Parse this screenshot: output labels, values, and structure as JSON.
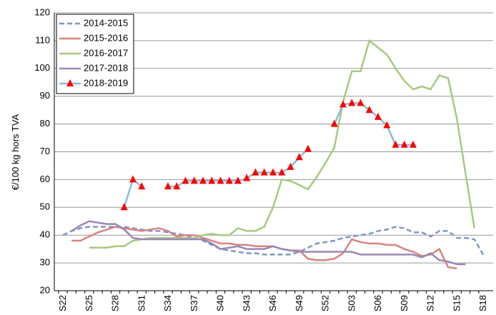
{
  "chart_data": {
    "type": "line",
    "y_label": "€/100 kg hors TVA",
    "categories": [
      "S22",
      null,
      null,
      "S25",
      null,
      null,
      "S28",
      null,
      null,
      "S31",
      null,
      null,
      "S34",
      null,
      null,
      "S37",
      null,
      null,
      "S40",
      null,
      null,
      "S43",
      null,
      null,
      "S46",
      null,
      null,
      "S49",
      null,
      null,
      "S52",
      null,
      null,
      "S03",
      null,
      null,
      "S06",
      null,
      null,
      "S09",
      null,
      null,
      "S12",
      null,
      null,
      "S15",
      null,
      null,
      "S18"
    ],
    "ylim": [
      20,
      120
    ],
    "yticks": [
      20,
      30,
      40,
      50,
      60,
      70,
      80,
      90,
      100,
      110,
      120
    ],
    "grid": true,
    "legend": "upper left",
    "series": [
      {
        "name": "2014-2015",
        "color": "#7f97c8",
        "dash": true,
        "values": [
          40,
          41.5,
          42.5,
          43,
          43,
          43,
          43,
          43,
          42.5,
          42,
          41.5,
          41.5,
          41,
          40.5,
          40,
          39,
          38,
          36.5,
          35,
          34.5,
          34,
          33.5,
          33.5,
          33,
          33,
          33,
          33,
          34,
          35.5,
          37,
          37.5,
          38,
          39,
          39.5,
          40,
          40.5,
          41.5,
          42,
          43,
          42.5,
          41,
          41,
          39.5,
          41.5,
          41.5,
          39,
          39,
          38.5,
          33
        ]
      },
      {
        "name": "2015-2016",
        "color": "#d9837f",
        "values": [
          null,
          38,
          38,
          39.5,
          41,
          42,
          43,
          42.5,
          42,
          41.5,
          42,
          42.5,
          41.5,
          39.5,
          40,
          40,
          39,
          38,
          37,
          37,
          36.5,
          36.5,
          36,
          36,
          36,
          35,
          34.5,
          34.5,
          31.5,
          31,
          31,
          31.5,
          33.5,
          38.5,
          37.5,
          37,
          37,
          36.5,
          36.5,
          35,
          34,
          32.5,
          33,
          35,
          28.5,
          28,
          null,
          null,
          null
        ]
      },
      {
        "name": "2016-2017",
        "color": "#a8c97f",
        "values": [
          null,
          null,
          null,
          35.5,
          35.5,
          35.5,
          36,
          36,
          38,
          38.5,
          39,
          39,
          39,
          39,
          39,
          39,
          40,
          40.5,
          40,
          40,
          42.5,
          41.5,
          41.5,
          43,
          50,
          60,
          59.5,
          58,
          56.5,
          61,
          66,
          71.5,
          88,
          99,
          99,
          110,
          107.5,
          105,
          100,
          95.5,
          92.5,
          93.5,
          92.5,
          97.5,
          96.5,
          82,
          62,
          42.5,
          null
        ]
      },
      {
        "name": "2017-2018",
        "color": "#9a87b5",
        "values": [
          null,
          41.5,
          43.5,
          45,
          44.5,
          44,
          44,
          42,
          39,
          38.5,
          38.5,
          38.5,
          38.5,
          38.5,
          38.5,
          38.5,
          38.5,
          37,
          35,
          35.5,
          36,
          35,
          35,
          35,
          36,
          35,
          34.5,
          34,
          34,
          34,
          34,
          34,
          34,
          34,
          33,
          33,
          33,
          33,
          33,
          33,
          33,
          32,
          33.5,
          31,
          30.5,
          29.5,
          29.5,
          null,
          null
        ]
      },
      {
        "name": "2018-2019",
        "color": "#8fb8d8",
        "marker": "triangle",
        "marker_color": "#ff0000",
        "values": [
          null,
          null,
          null,
          null,
          null,
          null,
          null,
          50,
          60,
          57.5,
          null,
          null,
          57.5,
          57.5,
          59.5,
          59.5,
          59.5,
          59.5,
          59.5,
          59.5,
          59.5,
          60.5,
          62.5,
          62.5,
          62.5,
          62.5,
          64.5,
          68,
          71,
          null,
          null,
          80,
          87,
          87.5,
          87.5,
          85,
          82.5,
          79.5,
          72.5,
          72.5,
          72.5,
          null,
          null,
          null,
          null,
          null,
          null,
          null,
          null
        ]
      }
    ]
  }
}
